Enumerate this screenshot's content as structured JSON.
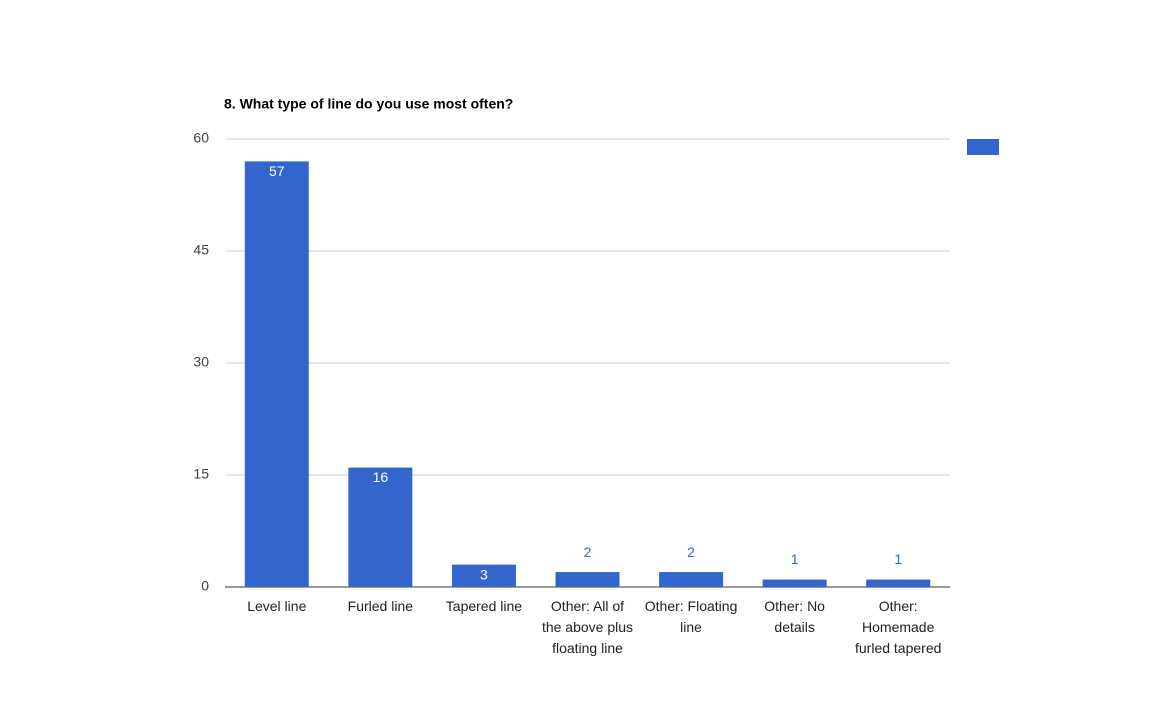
{
  "chart_data": {
    "type": "bar",
    "title": "8. What type of line do you use most often?",
    "categories": [
      "Level line",
      "Furled line",
      "Tapered line",
      "Other: All of the above plus floating line",
      "Other: Floating line",
      "Other: No details",
      "Other: Homemade furled tapered"
    ],
    "values": [
      57,
      16,
      3,
      2,
      2,
      1,
      1
    ],
    "color": "#3366cc",
    "ylim": [
      0,
      60
    ],
    "yticks": [
      0,
      15,
      30,
      45,
      60
    ],
    "grid": true,
    "legend": "right"
  }
}
